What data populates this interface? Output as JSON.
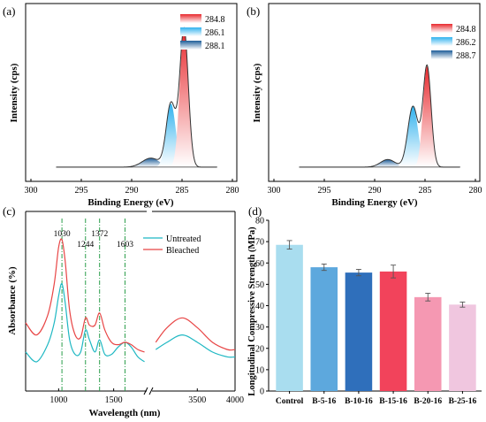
{
  "chart_data": [
    {
      "panel": "(a)",
      "type": "line",
      "xlabel": "Binding Energy (eV)",
      "ylabel": "Intensity (cps)",
      "xlim": [
        300,
        280
      ],
      "xticks": [
        300,
        295,
        290,
        285,
        280
      ],
      "legend_placement": "top-right",
      "legend": [
        "284.8",
        "286.1",
        "288.1"
      ],
      "peaks": [
        {
          "name": "284.8",
          "center": 284.8,
          "height": 1.0,
          "fwhm": 1.0,
          "color": "#e8292d"
        },
        {
          "name": "286.1",
          "center": 286.1,
          "height": 0.46,
          "fwhm": 1.1,
          "color": "#31b2ee"
        },
        {
          "name": "288.1",
          "center": 288.1,
          "height": 0.065,
          "fwhm": 2.0,
          "color": "#1f5e99"
        }
      ],
      "background": 0.02
    },
    {
      "panel": "(b)",
      "type": "line",
      "xlabel": "Binding Energy (eV)",
      "ylabel": "Intensity (cps)",
      "xlim": [
        300,
        280
      ],
      "xticks": [
        300,
        295,
        290,
        285,
        280
      ],
      "legend_placement": "top-right",
      "legend": [
        "284.8",
        "286.2",
        "288.7"
      ],
      "peaks": [
        {
          "name": "284.8",
          "center": 284.8,
          "height": 0.73,
          "fwhm": 0.95,
          "color": "#e8292d"
        },
        {
          "name": "286.2",
          "center": 286.2,
          "height": 0.44,
          "fwhm": 1.2,
          "color": "#31b2ee"
        },
        {
          "name": "288.7",
          "center": 288.7,
          "height": 0.055,
          "fwhm": 1.7,
          "color": "#1f5e99"
        }
      ],
      "background": 0.02
    },
    {
      "panel": "(c)",
      "type": "line",
      "xlabel": "Wavelength (nm)",
      "ylabel": "Absorbance (%)",
      "xticks": [
        1000,
        1500,
        3500,
        4000
      ],
      "legend_placement": "top-right",
      "axis_break": [
        1800,
        2900
      ],
      "annotations": [
        "1030",
        "1244",
        "1372",
        "1603"
      ],
      "annotation_x": [
        1030,
        1244,
        1372,
        1603
      ],
      "series": [
        {
          "name": "Untreated",
          "color": "#1fb8c3",
          "segments": [
            [
              [
                700,
                0.36
              ],
              [
                800,
                0.32
              ],
              [
                900,
                0.39
              ],
              [
                960,
                0.48
              ],
              [
                1000,
                0.59
              ],
              [
                1030,
                0.64
              ],
              [
                1060,
                0.56
              ],
              [
                1100,
                0.41
              ],
              [
                1150,
                0.35
              ],
              [
                1200,
                0.36
              ],
              [
                1244,
                0.45
              ],
              [
                1280,
                0.41
              ],
              [
                1330,
                0.36
              ],
              [
                1372,
                0.41
              ],
              [
                1420,
                0.35
              ],
              [
                1480,
                0.35
              ],
              [
                1540,
                0.38
              ],
              [
                1603,
                0.4
              ],
              [
                1660,
                0.38
              ],
              [
                1720,
                0.34
              ],
              [
                1780,
                0.32
              ]
            ],
            [
              [
                2950,
                0.37
              ],
              [
                3100,
                0.4
              ],
              [
                3300,
                0.43
              ],
              [
                3500,
                0.4
              ],
              [
                3700,
                0.36
              ],
              [
                3900,
                0.34
              ],
              [
                4000,
                0.34
              ]
            ]
          ]
        },
        {
          "name": "Bleached",
          "color": "#e84545",
          "segments": [
            [
              [
                700,
                0.48
              ],
              [
                800,
                0.43
              ],
              [
                900,
                0.51
              ],
              [
                960,
                0.64
              ],
              [
                1000,
                0.79
              ],
              [
                1030,
                0.82
              ],
              [
                1060,
                0.73
              ],
              [
                1100,
                0.53
              ],
              [
                1150,
                0.43
              ],
              [
                1200,
                0.42
              ],
              [
                1244,
                0.5
              ],
              [
                1280,
                0.47
              ],
              [
                1330,
                0.47
              ],
              [
                1372,
                0.52
              ],
              [
                1420,
                0.45
              ],
              [
                1480,
                0.4
              ],
              [
                1540,
                0.39
              ],
              [
                1603,
                0.4
              ],
              [
                1660,
                0.39
              ],
              [
                1720,
                0.37
              ],
              [
                1780,
                0.36
              ]
            ],
            [
              [
                2950,
                0.4
              ],
              [
                3100,
                0.46
              ],
              [
                3300,
                0.5
              ],
              [
                3500,
                0.46
              ],
              [
                3700,
                0.4
              ],
              [
                3900,
                0.37
              ],
              [
                4000,
                0.37
              ]
            ]
          ]
        }
      ]
    },
    {
      "panel": "(d)",
      "type": "bar",
      "ylabel": "Longitudinal Compressive Strength (MPa)",
      "ylim": [
        0,
        80
      ],
      "yticks": [
        0,
        10,
        20,
        30,
        40,
        50,
        60,
        70,
        80
      ],
      "categories": [
        "Control",
        "B-5-16",
        "B-10-16",
        "B-15-16",
        "B-20-16",
        "B-25-16"
      ],
      "values": [
        68.5,
        58.0,
        55.5,
        56.0,
        44.0,
        40.5
      ],
      "errors": [
        2.0,
        1.5,
        1.5,
        3.0,
        1.8,
        1.2
      ],
      "colors": [
        "#a9ddef",
        "#5da8dd",
        "#2f6fbb",
        "#f2435b",
        "#f598b2",
        "#f0c6df"
      ]
    }
  ]
}
